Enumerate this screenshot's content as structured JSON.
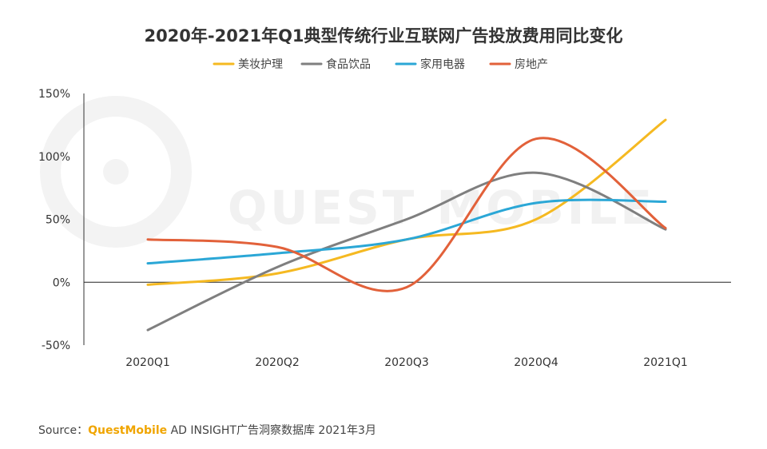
{
  "chart_data": {
    "type": "line",
    "title": "2020年-2021年Q1典型传统行业互联网广告投放费用同比变化",
    "categories": [
      "2020Q1",
      "2020Q2",
      "2020Q3",
      "2020Q4",
      "2021Q1"
    ],
    "y_ticks": [
      "150%",
      "100%",
      "50%",
      "0%",
      "-50%"
    ],
    "ylim": [
      -50,
      150
    ],
    "xlabel": "",
    "ylabel": "",
    "legend_position": "top-center",
    "grid": false,
    "series": [
      {
        "name": "美妆护理",
        "color": "#f5b921",
        "values": [
          -2,
          7,
          34,
          50,
          129
        ]
      },
      {
        "name": "食品饮品",
        "color": "#7f7f7f",
        "values": [
          -38,
          12,
          50,
          87,
          42
        ]
      },
      {
        "name": "家用电器",
        "color": "#2ba7d6",
        "values": [
          15,
          23,
          34,
          63,
          64
        ]
      },
      {
        "name": "房地产",
        "color": "#e2613a",
        "values": [
          34,
          28,
          -4,
          114,
          43
        ]
      }
    ]
  },
  "watermark": {
    "text": "QUEST MOBILE"
  },
  "footer": {
    "source_label": "Source：",
    "brand": "QuestMobile",
    "rest": "AD INSIGHT广告洞察数据库 2021年3月"
  }
}
